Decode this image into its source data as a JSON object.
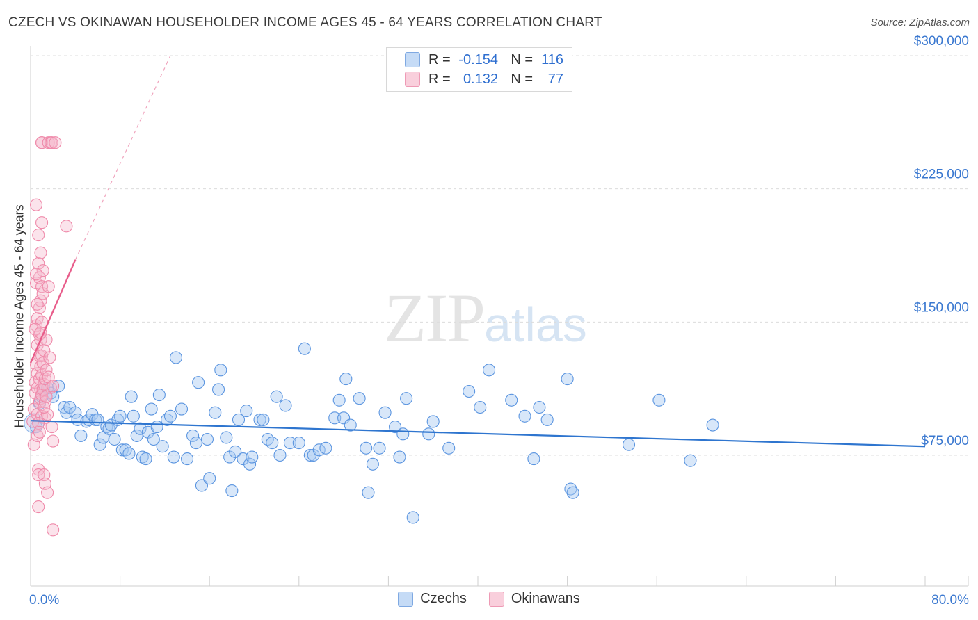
{
  "header": {
    "title": "CZECH VS OKINAWAN HOUSEHOLDER INCOME AGES 45 - 64 YEARS CORRELATION CHART",
    "source": "Source: ZipAtlas.com"
  },
  "watermark": {
    "zip": "ZIP",
    "atlas": "atlas"
  },
  "legend": {
    "rows": [
      {
        "r_label": "R =",
        "r_value": "-0.154",
        "n_label": "N =",
        "n_value": "116",
        "color": "#a9c9f2"
      },
      {
        "r_label": "R =",
        "r_value": "0.132",
        "n_label": "N =",
        "n_value": "77",
        "color": "#f5b9cc"
      }
    ],
    "series_labels": [
      "Czechs",
      "Okinawans"
    ]
  },
  "chart_data": {
    "type": "scatter",
    "title": "CZECH VS OKINAWAN HOUSEHOLDER INCOME AGES 45 - 64 YEARS CORRELATION CHART",
    "ylabel": "Householder Income Ages 45 - 64 years",
    "xlabel": "",
    "xlim": [
      0,
      80
    ],
    "ylim": [
      0,
      310000
    ],
    "x_tick_labels": [
      "0.0%",
      "80.0%"
    ],
    "y_ticks": [
      75000,
      150000,
      225000,
      300000
    ],
    "y_tick_labels": [
      "$75,000",
      "$150,000",
      "$225,000",
      "$300,000"
    ],
    "colors": {
      "czechs": "#5b95e0",
      "okinawans": "#ef8aaa",
      "czechs_line": "#2e75cf",
      "okinawans_line": "#e85c8a",
      "tick_label": "#3a78d0"
    },
    "series": [
      {
        "name": "Czechs",
        "trend": {
          "x": [
            0,
            80
          ],
          "y": [
            94500,
            80000
          ]
        },
        "points": [
          [
            0.5,
            91000
          ],
          [
            0.8,
            104000
          ],
          [
            1.0,
            108000
          ],
          [
            1.2,
            112000
          ],
          [
            1.5,
            113000
          ],
          [
            1.8,
            110000
          ],
          [
            2.0,
            108000
          ],
          [
            2.5,
            114000
          ],
          [
            3.0,
            102000
          ],
          [
            3.2,
            99000
          ],
          [
            3.5,
            102000
          ],
          [
            4.0,
            99000
          ],
          [
            4.2,
            95000
          ],
          [
            4.5,
            86000
          ],
          [
            5.0,
            94000
          ],
          [
            5.2,
            95000
          ],
          [
            5.5,
            98000
          ],
          [
            5.8,
            95000
          ],
          [
            6.0,
            95000
          ],
          [
            6.2,
            81000
          ],
          [
            6.5,
            85000
          ],
          [
            6.8,
            91000
          ],
          [
            7.0,
            90000
          ],
          [
            7.2,
            92000
          ],
          [
            7.5,
            84000
          ],
          [
            7.8,
            95000
          ],
          [
            8.0,
            97000
          ],
          [
            8.2,
            78000
          ],
          [
            8.5,
            78000
          ],
          [
            8.8,
            76000
          ],
          [
            9.0,
            108000
          ],
          [
            9.2,
            97000
          ],
          [
            9.5,
            86000
          ],
          [
            9.8,
            90000
          ],
          [
            10.0,
            74000
          ],
          [
            10.3,
            73000
          ],
          [
            10.5,
            88000
          ],
          [
            10.8,
            101000
          ],
          [
            11.0,
            84000
          ],
          [
            11.3,
            91000
          ],
          [
            11.5,
            109000
          ],
          [
            11.8,
            80000
          ],
          [
            12.2,
            95000
          ],
          [
            12.5,
            97000
          ],
          [
            12.8,
            74000
          ],
          [
            13.0,
            130000
          ],
          [
            13.5,
            101000
          ],
          [
            14.0,
            73000
          ],
          [
            14.5,
            86000
          ],
          [
            14.8,
            82000
          ],
          [
            15.0,
            116000
          ],
          [
            15.3,
            58000
          ],
          [
            15.8,
            84000
          ],
          [
            16.0,
            62000
          ],
          [
            16.5,
            99000
          ],
          [
            16.8,
            112000
          ],
          [
            17.0,
            123000
          ],
          [
            17.5,
            85000
          ],
          [
            17.8,
            74000
          ],
          [
            18.0,
            55000
          ],
          [
            18.3,
            77000
          ],
          [
            18.6,
            95000
          ],
          [
            19.0,
            73000
          ],
          [
            19.3,
            100000
          ],
          [
            19.6,
            70000
          ],
          [
            19.8,
            74000
          ],
          [
            20.5,
            95000
          ],
          [
            20.8,
            95000
          ],
          [
            21.2,
            84000
          ],
          [
            21.6,
            82000
          ],
          [
            22.0,
            108000
          ],
          [
            22.3,
            75000
          ],
          [
            22.8,
            103000
          ],
          [
            23.2,
            82000
          ],
          [
            24.0,
            82000
          ],
          [
            24.5,
            135000
          ],
          [
            25.0,
            75000
          ],
          [
            25.3,
            75000
          ],
          [
            25.8,
            78000
          ],
          [
            26.4,
            79000
          ],
          [
            27.2,
            96000
          ],
          [
            27.6,
            106000
          ],
          [
            28.0,
            96000
          ],
          [
            28.2,
            118000
          ],
          [
            28.6,
            92000
          ],
          [
            29.4,
            107000
          ],
          [
            30.0,
            79000
          ],
          [
            30.2,
            54000
          ],
          [
            30.6,
            70000
          ],
          [
            31.2,
            79000
          ],
          [
            31.7,
            99000
          ],
          [
            32.6,
            91000
          ],
          [
            33.0,
            74000
          ],
          [
            33.3,
            87000
          ],
          [
            33.6,
            107000
          ],
          [
            34.2,
            40000
          ],
          [
            35.6,
            87000
          ],
          [
            36.0,
            94000
          ],
          [
            37.4,
            79000
          ],
          [
            39.2,
            111000
          ],
          [
            40.2,
            102000
          ],
          [
            41.0,
            123000
          ],
          [
            43.0,
            106000
          ],
          [
            44.2,
            97000
          ],
          [
            45.5,
            102000
          ],
          [
            46.2,
            95000
          ],
          [
            45.0,
            73000
          ],
          [
            48.0,
            118000
          ],
          [
            48.3,
            56000
          ],
          [
            48.5,
            54000
          ],
          [
            53.5,
            81000
          ],
          [
            56.2,
            106000
          ],
          [
            59.0,
            72000
          ],
          [
            61.0,
            92000
          ]
        ]
      },
      {
        "name": "Okinawans",
        "trend": {
          "x": [
            0,
            4.0
          ],
          "y": [
            127000,
            185000
          ]
        },
        "trend_extension": {
          "x": [
            4.0,
            12.5
          ],
          "y": [
            185000,
            300000
          ]
        },
        "points": [
          [
            0.2,
            94000
          ],
          [
            0.3,
            81000
          ],
          [
            0.3,
            101000
          ],
          [
            0.4,
            110000
          ],
          [
            0.4,
            116000
          ],
          [
            0.5,
            126000
          ],
          [
            0.5,
            148000
          ],
          [
            0.5,
            172000
          ],
          [
            0.5,
            216000
          ],
          [
            0.6,
            98000
          ],
          [
            0.6,
            113000
          ],
          [
            0.6,
            121000
          ],
          [
            0.6,
            137000
          ],
          [
            0.6,
            152000
          ],
          [
            0.7,
            183000
          ],
          [
            0.7,
            199000
          ],
          [
            0.7,
            67000
          ],
          [
            0.7,
            64000
          ],
          [
            0.7,
            46000
          ],
          [
            0.8,
            105000
          ],
          [
            0.8,
            118000
          ],
          [
            0.8,
            131000
          ],
          [
            0.8,
            143000
          ],
          [
            0.8,
            158000
          ],
          [
            0.8,
            175000
          ],
          [
            0.9,
            107000
          ],
          [
            0.9,
            112000
          ],
          [
            0.9,
            125000
          ],
          [
            0.9,
            140000
          ],
          [
            0.9,
            162000
          ],
          [
            0.9,
            189000
          ],
          [
            1.0,
            97000
          ],
          [
            1.0,
            109000
          ],
          [
            1.0,
            120000
          ],
          [
            1.0,
            131000
          ],
          [
            1.0,
            150000
          ],
          [
            1.0,
            170000
          ],
          [
            1.0,
            206000
          ],
          [
            1.0,
            251000
          ],
          [
            1.0,
            251000
          ],
          [
            1.1,
            112000
          ],
          [
            1.1,
            127000
          ],
          [
            1.1,
            166000
          ],
          [
            1.1,
            179000
          ],
          [
            1.2,
            115000
          ],
          [
            1.2,
            134000
          ],
          [
            1.2,
            64000
          ],
          [
            1.3,
            96000
          ],
          [
            1.3,
            118000
          ],
          [
            1.3,
            105000
          ],
          [
            1.3,
            59000
          ],
          [
            1.4,
            123000
          ],
          [
            1.4,
            140000
          ],
          [
            1.5,
            54000
          ],
          [
            1.5,
            98000
          ],
          [
            1.6,
            119000
          ],
          [
            1.6,
            251000
          ],
          [
            1.6,
            170000
          ],
          [
            1.7,
            130000
          ],
          [
            1.8,
            113000
          ],
          [
            1.8,
            251000
          ],
          [
            1.9,
            91000
          ],
          [
            1.9,
            251000
          ],
          [
            2.0,
            114000
          ],
          [
            2.0,
            83000
          ],
          [
            2.0,
            33000
          ],
          [
            2.2,
            251000
          ],
          [
            3.2,
            204000
          ],
          [
            0.6,
            86000
          ],
          [
            0.7,
            93000
          ],
          [
            0.8,
            88000
          ],
          [
            0.4,
            146000
          ],
          [
            0.5,
            177000
          ],
          [
            0.6,
            160000
          ],
          [
            0.9,
            144000
          ],
          [
            1.2,
            102000
          ],
          [
            1.4,
            108000
          ]
        ]
      }
    ]
  }
}
